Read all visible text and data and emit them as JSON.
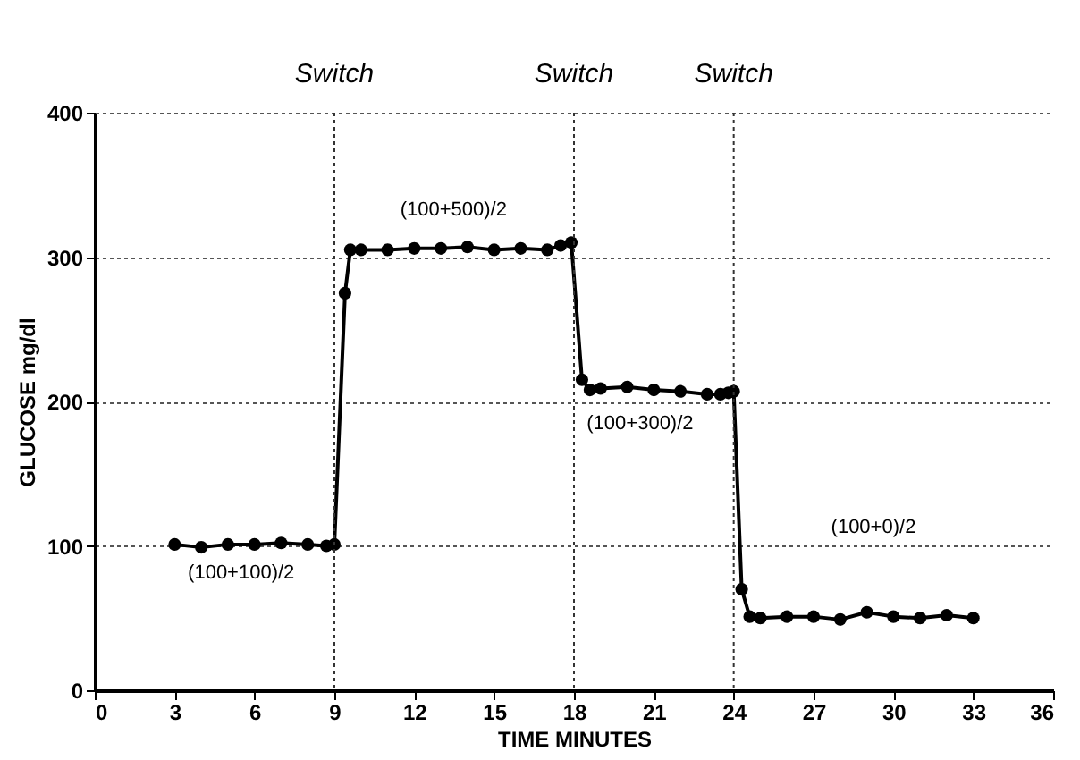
{
  "chart_data": {
    "type": "line",
    "xlabel": "TIME MINUTES",
    "ylabel": "GLUCOSE mg/dl",
    "series": [
      {
        "color": "#000000",
        "x": [
          3,
          4,
          5,
          6,
          7,
          8,
          8.7,
          9.0,
          9.4,
          9.6,
          10,
          11,
          12,
          13,
          14,
          15,
          16,
          17,
          17.5,
          17.9,
          18.3,
          18.6,
          19,
          20,
          21,
          22,
          23,
          23.5,
          23.8,
          24.0,
          24.3,
          24.6,
          25,
          26,
          27,
          28,
          29,
          30,
          31,
          32,
          33
        ],
        "values": [
          101,
          99,
          101,
          101,
          102,
          101,
          100,
          101,
          275,
          305,
          305,
          305,
          306,
          306,
          307,
          305,
          306,
          305,
          308,
          310,
          215,
          208,
          209,
          210,
          208,
          207,
          205,
          205,
          206,
          207,
          70,
          51,
          50,
          51,
          51,
          49,
          54,
          51,
          50,
          52,
          50
        ]
      }
    ],
    "xlim": [
      0,
      36
    ],
    "xticks": [
      0,
      3,
      6,
      9,
      12,
      15,
      18,
      21,
      24,
      27,
      30,
      33,
      36
    ],
    "ylim": [
      0,
      400
    ],
    "yticks": [
      0,
      100,
      200,
      300,
      400
    ],
    "grid": "y",
    "marker": "circle",
    "line_style": "solid",
    "ref_lines": [
      {
        "axis": "x",
        "value": 9,
        "label": "Switch",
        "line_style": "dotted"
      },
      {
        "axis": "x",
        "value": 18,
        "label": "Switch",
        "line_style": "dotted"
      },
      {
        "axis": "x",
        "value": 24,
        "label": "Switch",
        "line_style": "dotted"
      }
    ],
    "annotations": [
      "(100+500)/2",
      "(100+300)/2",
      "(100+100)/2",
      "(100+0)/2"
    ]
  }
}
